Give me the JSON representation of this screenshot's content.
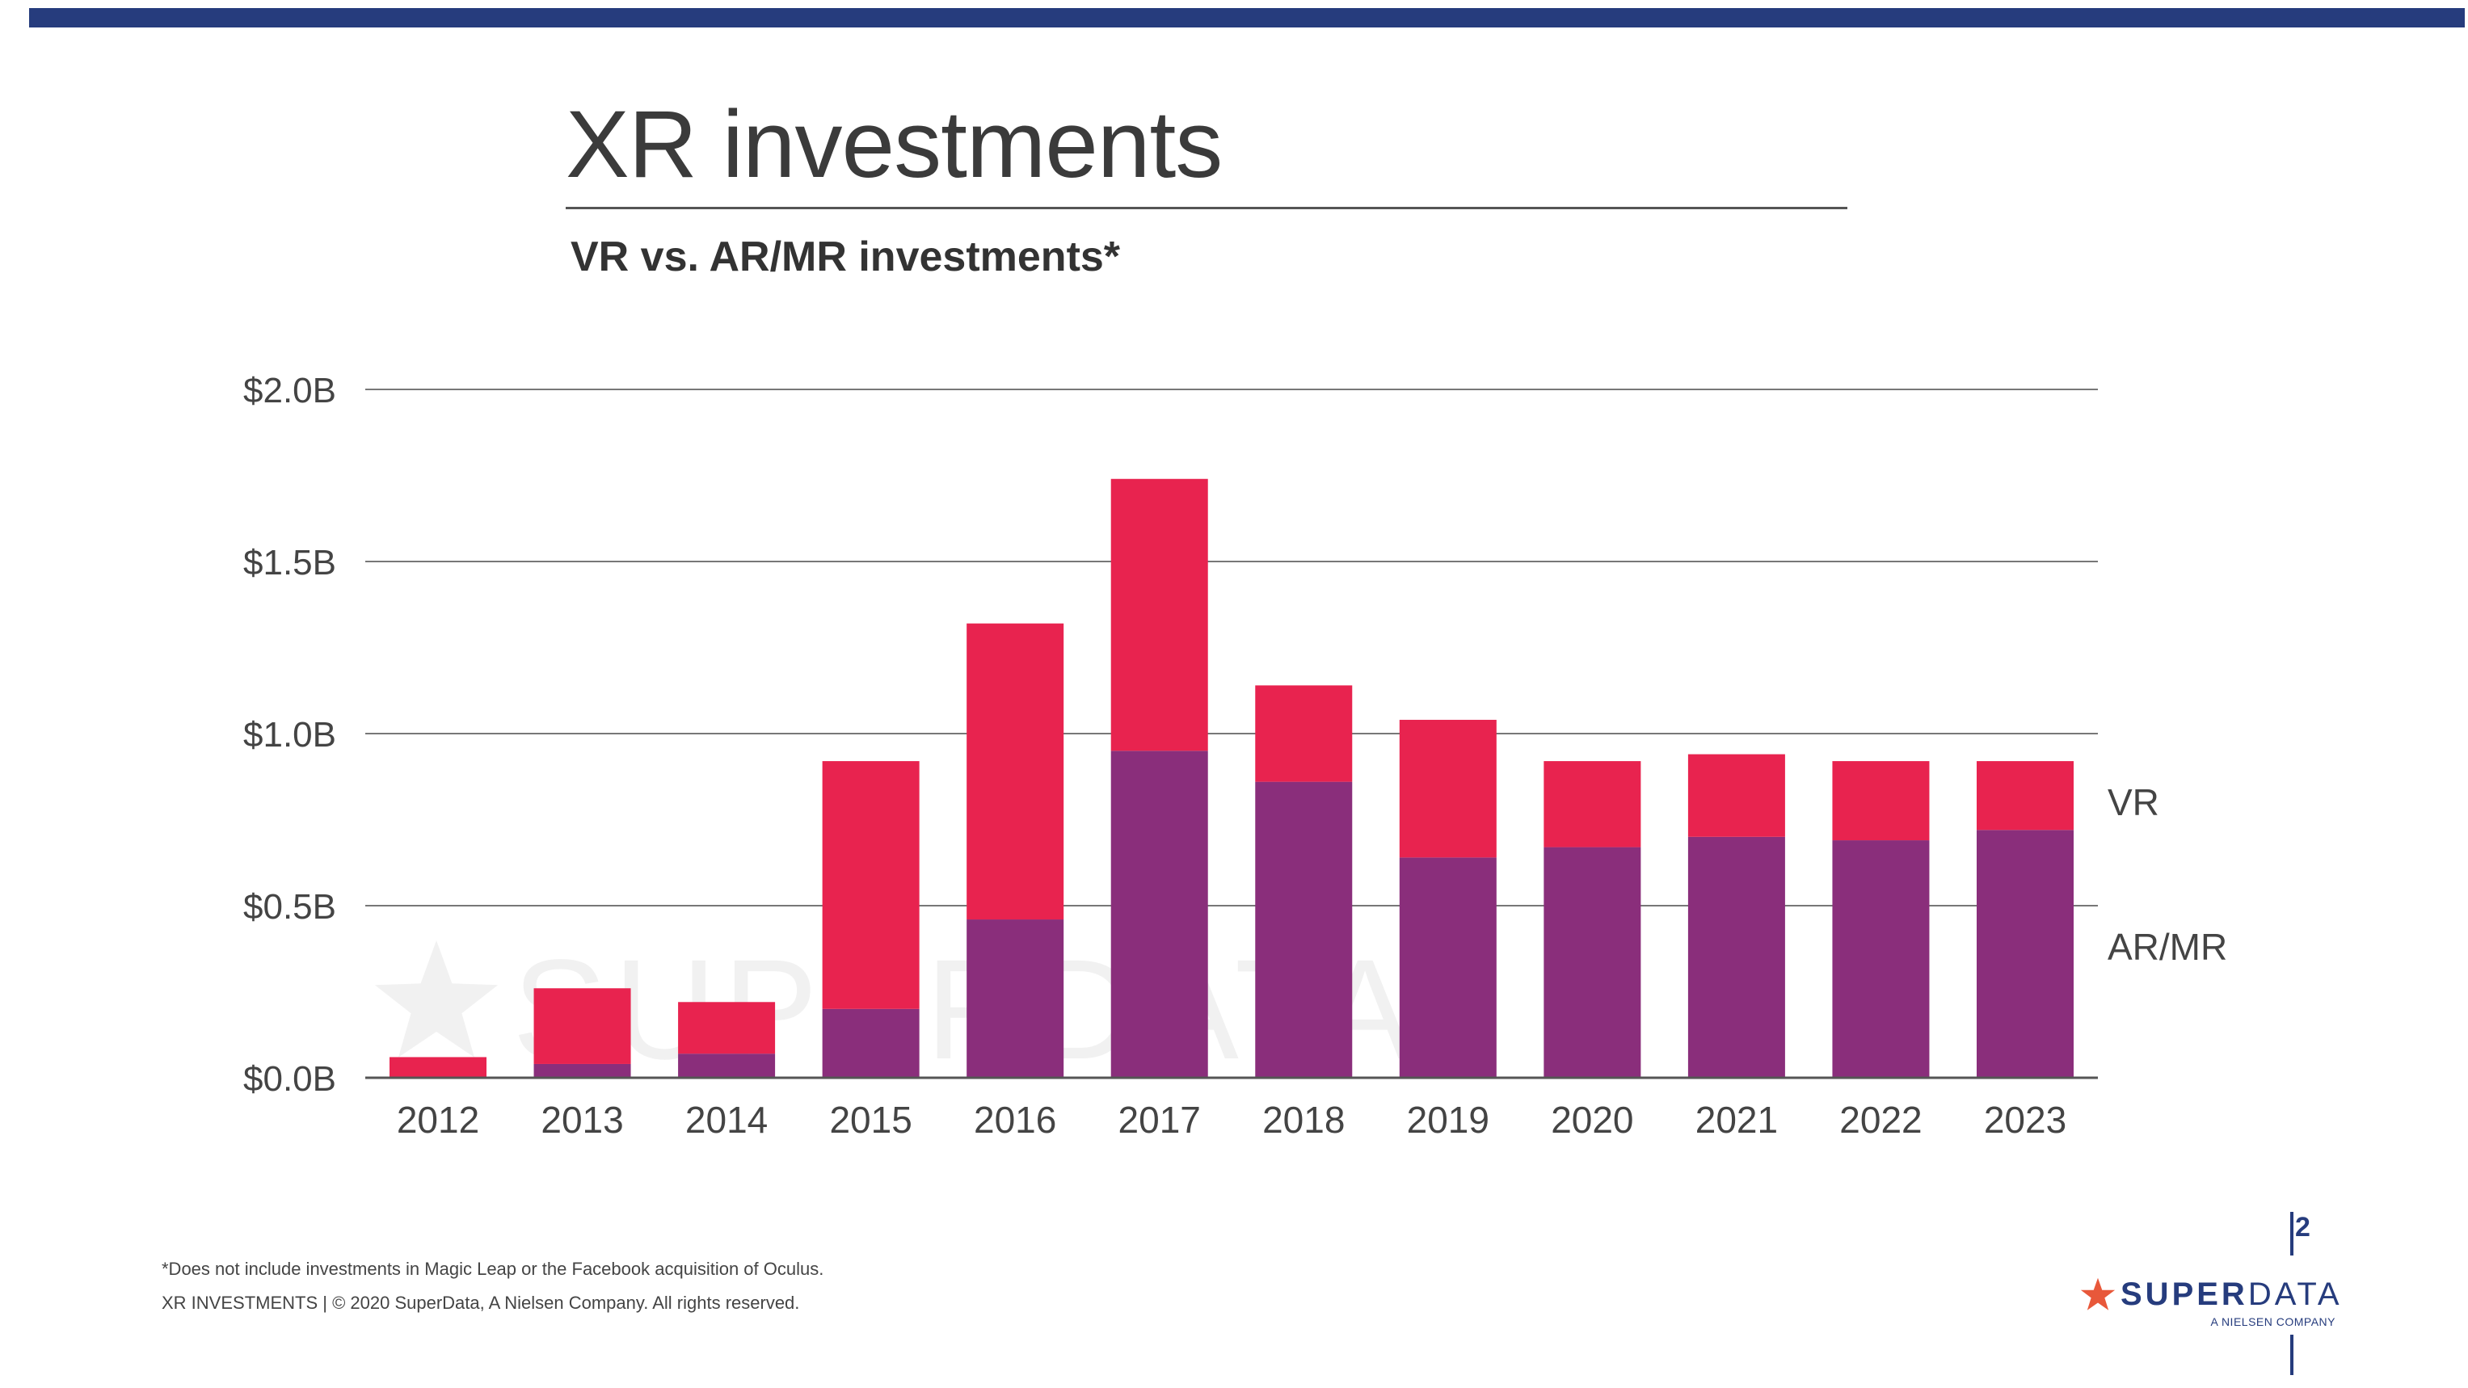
{
  "header": {
    "title": "XR investments",
    "subtitle": "VR vs. AR/MR investments*"
  },
  "watermark": "SUPERDATA",
  "footer": {
    "footnote": "*Does not include investments in Magic Leap or the Facebook acquisition of Oculus.",
    "copyright": "XR INVESTMENTS  |  © 2020 SuperData, A Nielsen Company. All rights reserved.",
    "page_number": "2"
  },
  "logo": {
    "name_part1": "SUPER",
    "name_part2": "DATA",
    "tagline": "A NIELSEN COMPANY",
    "star_color": "#e8583a"
  },
  "colors": {
    "top_band": "#263c7d",
    "vr": "#e8234f",
    "ar_mr": "#8a2e7b"
  },
  "chart_data": {
    "type": "bar",
    "stacked": true,
    "categories": [
      "2012",
      "2013",
      "2014",
      "2015",
      "2016",
      "2017",
      "2018",
      "2019",
      "2020",
      "2021",
      "2022",
      "2023"
    ],
    "series": [
      {
        "name": "AR/MR",
        "color": "#8a2e7b",
        "values": [
          0.0,
          0.04,
          0.07,
          0.2,
          0.46,
          0.95,
          0.86,
          0.64,
          0.67,
          0.7,
          0.69,
          0.72
        ]
      },
      {
        "name": "VR",
        "color": "#e8234f",
        "values": [
          0.06,
          0.22,
          0.15,
          0.72,
          0.86,
          0.79,
          0.28,
          0.4,
          0.25,
          0.24,
          0.23,
          0.2
        ]
      }
    ],
    "yticks": [
      {
        "value": 0.0,
        "label": "$0.0B"
      },
      {
        "value": 0.5,
        "label": "$0.5B"
      },
      {
        "value": 1.0,
        "label": "$1.0B"
      },
      {
        "value": 1.5,
        "label": "$1.5B"
      },
      {
        "value": 2.0,
        "label": "$2.0B"
      }
    ],
    "ylim": [
      0,
      2.0
    ],
    "grid": true,
    "legend_position": "right, labels beside final bar"
  }
}
